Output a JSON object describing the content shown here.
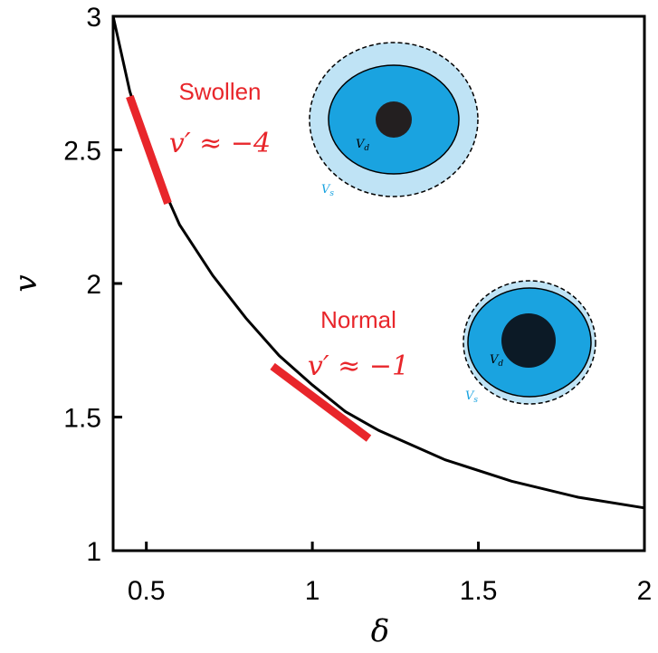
{
  "chart_data": {
    "type": "line",
    "xlabel": "δ",
    "ylabel": "v",
    "xlim": [
      0.4,
      2
    ],
    "xticks": [
      0.5,
      1,
      1.5,
      2
    ],
    "ylim": [
      1,
      3
    ],
    "yticks": [
      1,
      1.5,
      2,
      2.5,
      3
    ],
    "series": [
      {
        "color": "#000000",
        "x": [
          0.4,
          0.45,
          0.5,
          0.55,
          0.6,
          0.7,
          0.8,
          0.9,
          1.0,
          1.1,
          1.2,
          1.4,
          1.6,
          1.8,
          2.0
        ],
        "values": [
          3,
          2.72,
          2.52,
          2.36,
          2.22,
          2.03,
          1.87,
          1.73,
          1.62,
          1.52,
          1.45,
          1.34,
          1.26,
          1.2,
          1.16
        ]
      },
      {
        "color": "#e8262b",
        "x": [
          0.45,
          0.565
        ],
        "values": [
          2.7,
          2.3
        ]
      },
      {
        "color": "#e8262b",
        "x": [
          0.88,
          1.17
        ],
        "values": [
          1.69,
          1.42
        ]
      }
    ],
    "annotations": {
      "swollen": "Swollen",
      "swollen_slope": "v′ ≈ −4",
      "normal": "Normal",
      "normal_slope": "v′ ≈ −1",
      "swollen_vd": "V",
      "swollen_vd_sub": "d",
      "swollen_vs": "V",
      "swollen_vs_sub": "s",
      "normal_vd": "V",
      "normal_vd_sub": "d",
      "normal_vs": "V",
      "normal_vs_sub": "s"
    }
  }
}
